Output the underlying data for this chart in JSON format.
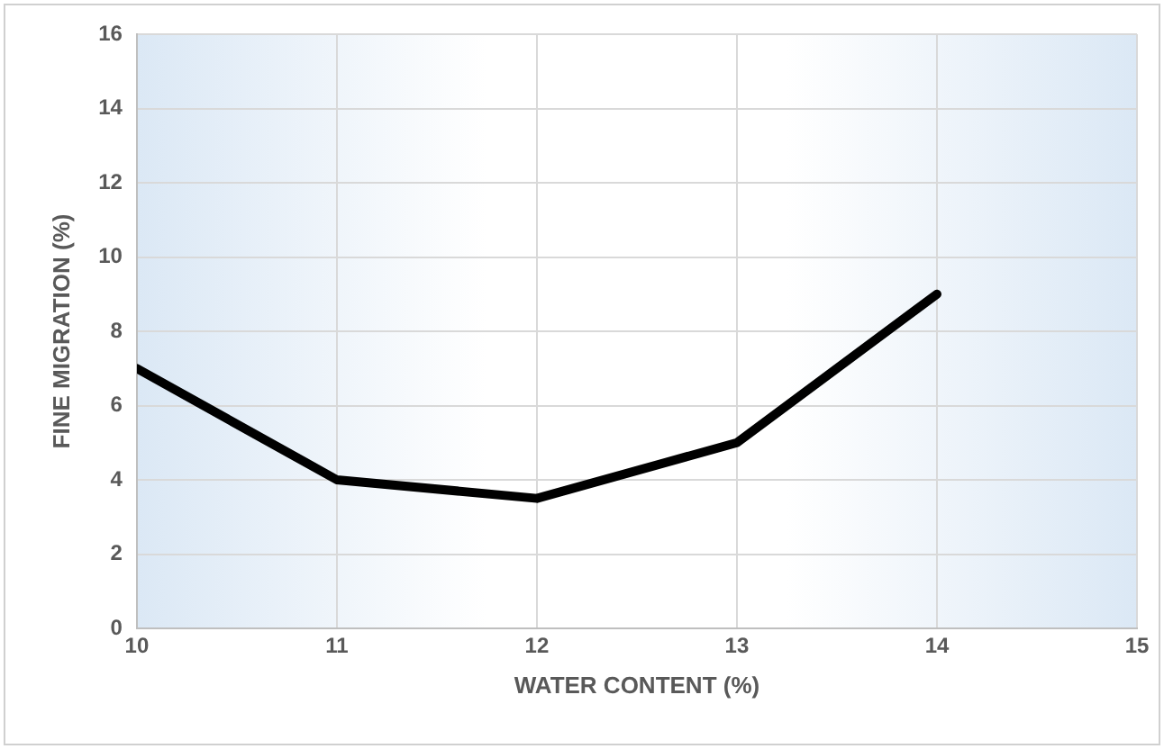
{
  "chart_data": {
    "type": "line",
    "xlabel": "WATER CONTENT (%)",
    "ylabel": "FINE MIGRATION (%)",
    "x": [
      10,
      11,
      12,
      13,
      14
    ],
    "series": [
      {
        "color": "#000000",
        "values": [
          7,
          4,
          3.5,
          5,
          9
        ]
      }
    ],
    "xlim": [
      10,
      15
    ],
    "xticks": [
      10,
      11,
      12,
      13,
      14,
      15
    ],
    "ylim": [
      0,
      16
    ],
    "yticks": [
      0,
      2,
      4,
      6,
      8,
      10,
      12,
      14,
      16
    ],
    "grid": true,
    "legend": false,
    "marker": "none",
    "line_style": "solid"
  }
}
